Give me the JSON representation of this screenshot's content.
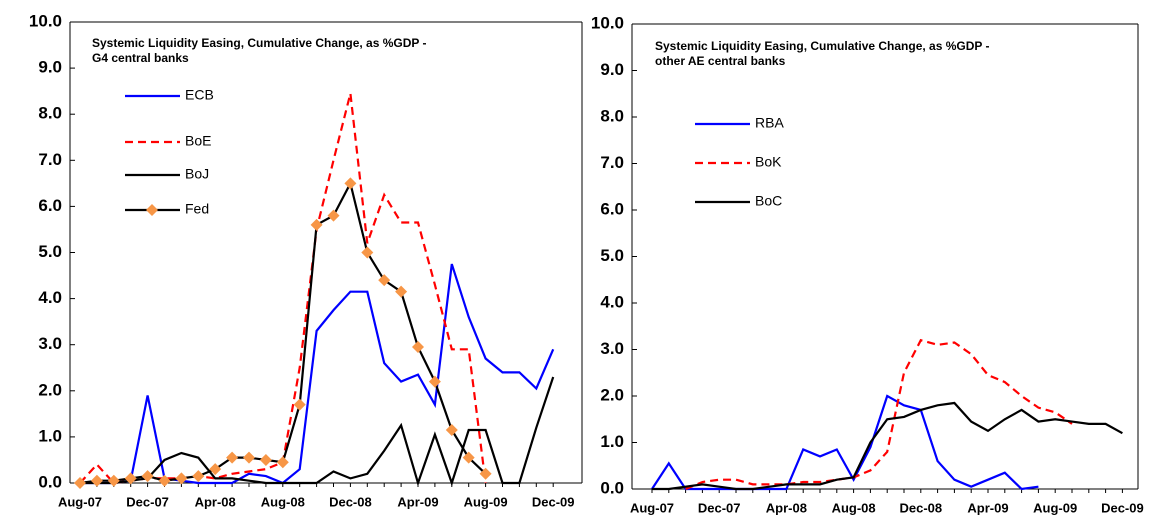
{
  "chart_data": [
    {
      "type": "line",
      "title": [
        "Systemic Liquidity Easing, Cumulative Change, as %GDP -",
        "G4  central banks"
      ],
      "categories": [
        "Aug-07",
        null,
        null,
        null,
        "Dec-07",
        null,
        null,
        null,
        "Apr-08",
        null,
        null,
        null,
        "Aug-08",
        null,
        null,
        null,
        "Dec-08",
        null,
        null,
        null,
        "Apr-09",
        null,
        null,
        null,
        "Aug-09",
        null,
        null,
        null,
        "Dec-09"
      ],
      "ylim": [
        0,
        10
      ],
      "yticks": [
        {
          "value": 0,
          "label": "0.0"
        },
        {
          "value": 1,
          "label": "1.0"
        },
        {
          "value": 2,
          "label": "2.0"
        },
        {
          "value": 3,
          "label": "3.0"
        },
        {
          "value": 4,
          "label": "4.0"
        },
        {
          "value": 5,
          "label": "5.0"
        },
        {
          "value": 6,
          "label": "6.0"
        },
        {
          "value": 7,
          "label": "7.0"
        },
        {
          "value": 8,
          "label": "8.0"
        },
        {
          "value": 9,
          "label": "9.0"
        },
        {
          "value": 10,
          "label": "10.0"
        }
      ],
      "series": [
        {
          "name": "ECB",
          "color": "#0000ff",
          "values": [
            0,
            0,
            0,
            0.05,
            1.9,
            0.1,
            0.05,
            0,
            0,
            0,
            0.2,
            0.15,
            0,
            0.3,
            3.3,
            3.75,
            4.15,
            4.15,
            2.6,
            2.2,
            2.35,
            1.7,
            4.75,
            3.6,
            2.7,
            2.4,
            2.4,
            2.05,
            2.9
          ]
        },
        {
          "name": "BoE",
          "color": "#ff0000",
          "dash": true,
          "values": [
            0,
            0.4,
            0,
            0.05,
            0.1,
            0.1,
            0.1,
            0.15,
            0.1,
            0.2,
            0.25,
            0.3,
            0.45,
            2.5,
            5.5,
            7.0,
            8.45,
            5.2,
            6.25,
            5.65,
            5.65,
            4.3,
            2.9,
            2.9,
            0,
            null,
            null,
            null,
            null
          ]
        },
        {
          "name": "BoJ",
          "color": "#000000",
          "values": [
            0,
            0,
            0,
            0.05,
            0.1,
            0.5,
            0.65,
            0.55,
            0.1,
            0.1,
            0.05,
            0,
            0,
            0,
            0,
            0.25,
            0.1,
            0.2,
            0.7,
            1.25,
            0,
            1.05,
            0,
            1.15,
            1.15,
            0,
            0,
            1.2,
            2.3
          ]
        },
        {
          "name": "Fed",
          "color": "#000000",
          "marker": "diamond",
          "marker_color": "#f79646",
          "values": [
            0,
            0.05,
            0.05,
            0.1,
            0.15,
            0.05,
            0.1,
            0.15,
            0.3,
            0.55,
            0.55,
            0.5,
            0.45,
            1.7,
            5.6,
            5.8,
            6.5,
            5.0,
            4.4,
            4.15,
            2.95,
            2.2,
            1.15,
            0.55,
            0.2,
            null,
            null,
            null,
            null
          ]
        }
      ]
    },
    {
      "type": "line",
      "title": [
        "Systemic Liquidity Easing, Cumulative Change, as %GDP -",
        "other AE central banks"
      ],
      "categories": [
        "Aug-07",
        null,
        null,
        null,
        "Dec-07",
        null,
        null,
        null,
        "Apr-08",
        null,
        null,
        null,
        "Aug-08",
        null,
        null,
        null,
        "Dec-08",
        null,
        null,
        null,
        "Apr-09",
        null,
        null,
        null,
        "Aug-09",
        null,
        null,
        null,
        "Dec-09"
      ],
      "ylim": [
        0,
        10
      ],
      "yticks": [
        {
          "value": 0,
          "label": "0.0"
        },
        {
          "value": 1,
          "label": "1.0"
        },
        {
          "value": 2,
          "label": "2.0"
        },
        {
          "value": 3,
          "label": "3.0"
        },
        {
          "value": 4,
          "label": "4.0"
        },
        {
          "value": 5,
          "label": "5.0"
        },
        {
          "value": 6,
          "label": "6.0"
        },
        {
          "value": 7,
          "label": "7.0"
        },
        {
          "value": 8,
          "label": "8.0"
        },
        {
          "value": 9,
          "label": "9.0"
        },
        {
          "value": 10,
          "label": "10.0"
        }
      ],
      "series": [
        {
          "name": "RBA",
          "color": "#0000ff",
          "values": [
            0,
            0.55,
            0,
            0,
            0,
            0,
            0,
            0,
            0,
            0.85,
            0.7,
            0.85,
            0.2,
            0.9,
            2.0,
            1.8,
            1.7,
            0.6,
            0.2,
            0.05,
            0.2,
            0.35,
            0,
            0.05,
            null,
            null,
            null,
            null,
            null
          ]
        },
        {
          "name": "BoK",
          "color": "#ff0000",
          "dash": true,
          "values": [
            null,
            null,
            0,
            0.15,
            0.2,
            0.2,
            0.1,
            0.1,
            0.1,
            0.15,
            0.15,
            0.2,
            0.25,
            0.4,
            0.8,
            2.5,
            3.2,
            3.1,
            3.15,
            2.9,
            2.45,
            2.3,
            2.0,
            1.75,
            1.65,
            1.4,
            null,
            null,
            null
          ]
        },
        {
          "name": "BoC",
          "color": "#000000",
          "values": [
            0,
            0,
            0.05,
            0.1,
            0.05,
            0,
            0,
            0.05,
            0.1,
            0.1,
            0.1,
            0.2,
            0.25,
            1.0,
            1.5,
            1.55,
            1.7,
            1.8,
            1.85,
            1.45,
            1.25,
            1.5,
            1.7,
            1.45,
            1.5,
            1.45,
            1.4,
            1.4,
            1.2
          ]
        }
      ]
    }
  ]
}
